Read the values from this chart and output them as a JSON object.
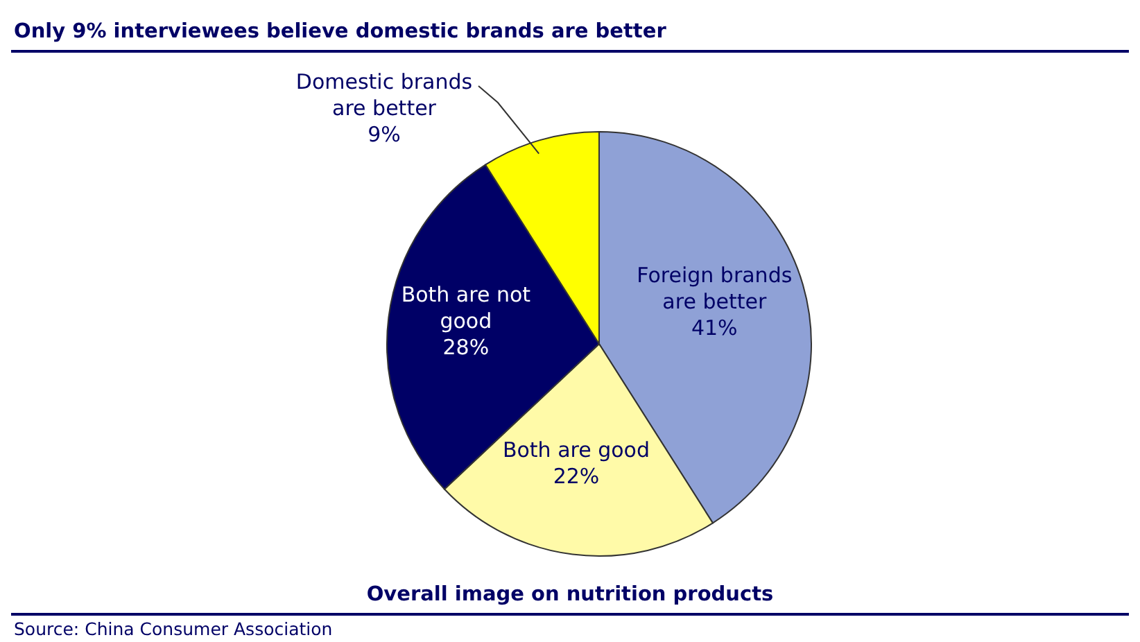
{
  "chart_data": {
    "type": "pie",
    "title": "Only 9% interviewees believe domestic brands are better",
    "subtitle": "Overall image on nutrition products",
    "categories": [
      "Foreign brands are better",
      "Both are good",
      "Both are not good",
      "Domestic brands are better"
    ],
    "values": [
      41,
      22,
      28,
      9
    ],
    "colors": [
      "#8fa1d6",
      "#fffaa8",
      "#000066",
      "#ffff00"
    ],
    "value_labels": [
      "41%",
      "22%",
      "28%",
      "9%"
    ],
    "annotations": [
      "Source: China Consumer Association"
    ]
  }
}
